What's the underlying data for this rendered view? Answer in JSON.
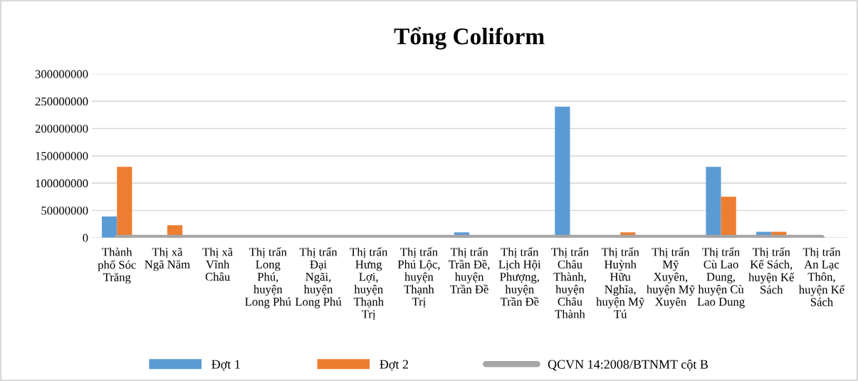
{
  "chart_data": {
    "type": "bar",
    "title": "Tổng Coliform",
    "categories": [
      "Thành phố Sóc Trăng",
      "Thị xã Ngã Năm",
      "Thị xã Vĩnh Châu",
      "Thị trấn Long Phú, huyện Long Phú",
      "Thị trấn Đại Ngãi, huyện Long Phú",
      "Thị trấn Hưng Lợi, huyện Thạnh Trị",
      "Thị trấn Phú Lộc, huyện Thạnh Trị",
      "Thị trấn Trần Đề, huyện Trần Đề",
      "Thị trấn Lịch Hội Phượng, huyện Trần Đề",
      "Thị trấn Châu Thành, huyện Châu Thành",
      "Thị trấn Huỳnh Hữu Nghĩa, huyện Mỹ Tú",
      "Thị trấn Mỹ Xuyên, huyện Mỹ Xuyên",
      "Thị trấn Cù Lao Dung, huyện Cù Lao Dung",
      "Thị trấn Kế Sách, huyện Kế Sách",
      "Thị trấn An Lạc Thôn, huyện Kế Sách"
    ],
    "series": [
      {
        "name": "Đợt 1",
        "color": "#5b9bd5",
        "values": [
          39000000,
          0,
          0,
          0,
          0,
          0,
          0,
          10000000,
          0,
          240000000,
          0,
          0,
          130000000,
          11000000,
          0
        ]
      },
      {
        "name": "Đợt 2",
        "color": "#ed7d31",
        "values": [
          130000000,
          23000000,
          0,
          0,
          0,
          0,
          0,
          0,
          0,
          0,
          10000000,
          0,
          75000000,
          11000000,
          0
        ]
      },
      {
        "name": "QCVN 14:2008/BTNMT cột B",
        "type": "line",
        "color": "#a5a5a5",
        "values": [
          0,
          0,
          0,
          0,
          0,
          0,
          0,
          0,
          0,
          0,
          0,
          0,
          0,
          0,
          0
        ]
      }
    ],
    "ylim": [
      0,
      300000000
    ],
    "yticks": [
      0,
      50000000,
      100000000,
      150000000,
      200000000,
      250000000,
      300000000
    ],
    "grid": "y",
    "legend": "bottom",
    "marker": "none",
    "line_style": "solid"
  }
}
